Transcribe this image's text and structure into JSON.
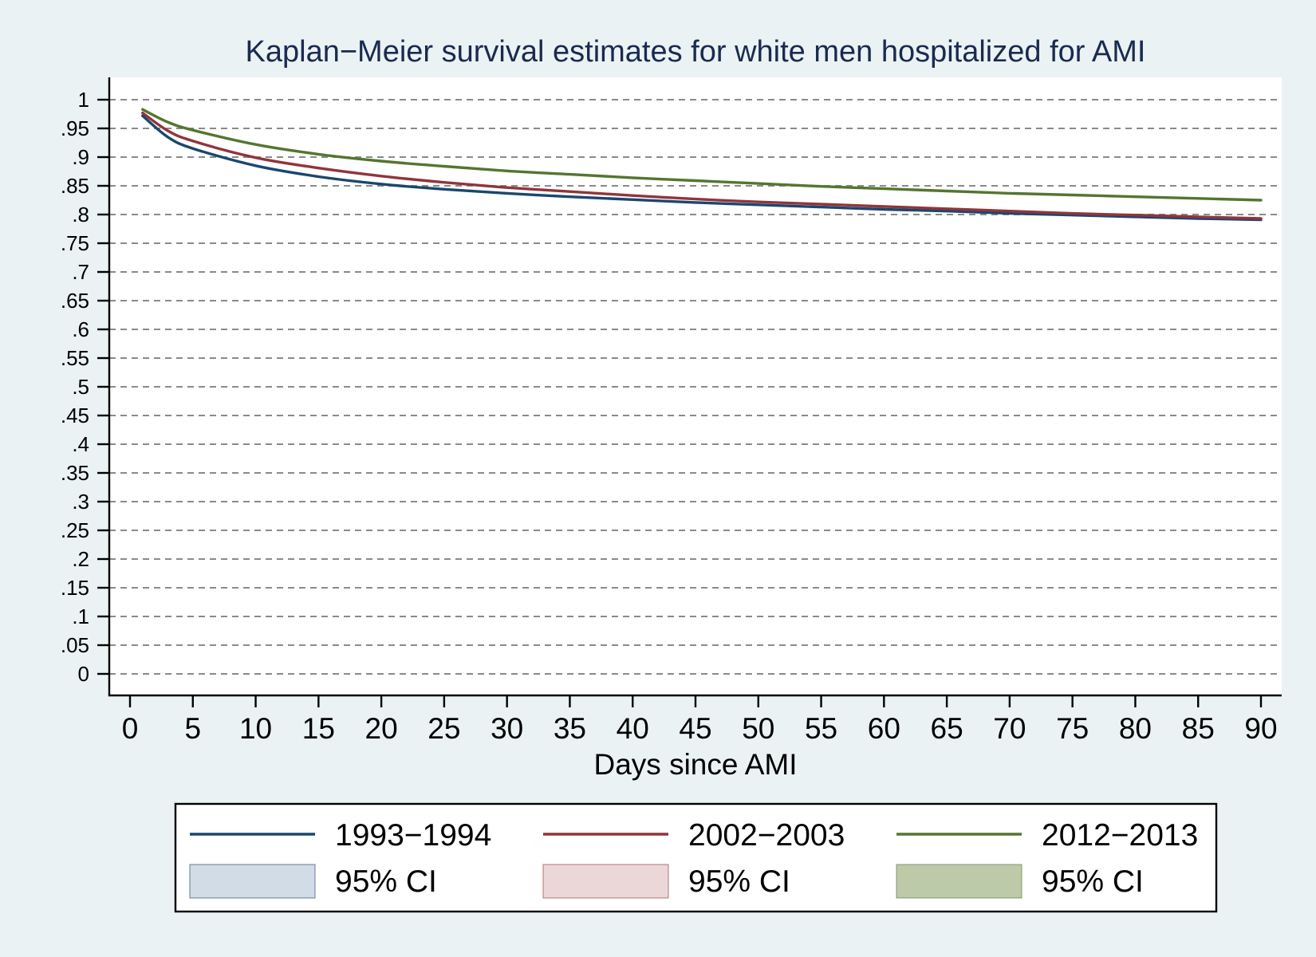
{
  "chart_data": {
    "type": "line",
    "title": "Kaplan−Meier survival estimates for white men hospitalized for AMI",
    "xlabel": "Days since AMI",
    "ylabel": "",
    "xlim": [
      0,
      90
    ],
    "ylim": [
      0,
      1
    ],
    "xticks": [
      0,
      5,
      10,
      15,
      20,
      25,
      30,
      35,
      40,
      45,
      50,
      55,
      60,
      65,
      70,
      75,
      80,
      85,
      90
    ],
    "xtick_labels": [
      "0",
      "5",
      "10",
      "15",
      "20",
      "25",
      "30",
      "35",
      "40",
      "45",
      "50",
      "55",
      "60",
      "65",
      "70",
      "75",
      "80",
      "85",
      "90"
    ],
    "yticks": [
      0,
      0.05,
      0.1,
      0.15,
      0.2,
      0.25,
      0.3,
      0.35,
      0.4,
      0.45,
      0.5,
      0.55,
      0.6,
      0.65,
      0.7,
      0.75,
      0.8,
      0.85,
      0.9,
      0.95,
      1
    ],
    "ytick_labels": [
      "0",
      ".05",
      ".1",
      ".15",
      ".2",
      ".25",
      ".3",
      ".35",
      ".4",
      ".45",
      ".5",
      ".55",
      ".6",
      ".65",
      ".7",
      ".75",
      ".8",
      ".85",
      ".9",
      ".95",
      "1"
    ],
    "grid": true,
    "legend_position": "bottom",
    "x": [
      1,
      3,
      5,
      10,
      15,
      20,
      25,
      30,
      35,
      40,
      45,
      50,
      55,
      60,
      65,
      70,
      75,
      80,
      85,
      90
    ],
    "series": [
      {
        "name": "1993−1994",
        "ci_label": "95% CI",
        "color": "#1a476f",
        "ci_color": "#d2dce6",
        "values": [
          0.972,
          0.935,
          0.915,
          0.885,
          0.866,
          0.853,
          0.844,
          0.837,
          0.831,
          0.826,
          0.821,
          0.817,
          0.813,
          0.809,
          0.806,
          0.802,
          0.799,
          0.796,
          0.793,
          0.791
        ]
      },
      {
        "name": "2002−2003",
        "ci_label": "95% CI",
        "color": "#90353b",
        "ci_color": "#ebd7d8",
        "values": [
          0.977,
          0.946,
          0.928,
          0.899,
          0.881,
          0.867,
          0.856,
          0.847,
          0.84,
          0.833,
          0.827,
          0.822,
          0.818,
          0.814,
          0.81,
          0.806,
          0.802,
          0.799,
          0.796,
          0.793
        ]
      },
      {
        "name": "2012−2013",
        "ci_label": "95% CI",
        "color": "#55752f",
        "ci_color": "#bccaa9",
        "values": [
          0.983,
          0.961,
          0.947,
          0.922,
          0.905,
          0.893,
          0.884,
          0.876,
          0.87,
          0.864,
          0.859,
          0.854,
          0.849,
          0.845,
          0.841,
          0.837,
          0.834,
          0.831,
          0.828,
          0.825
        ]
      }
    ]
  }
}
